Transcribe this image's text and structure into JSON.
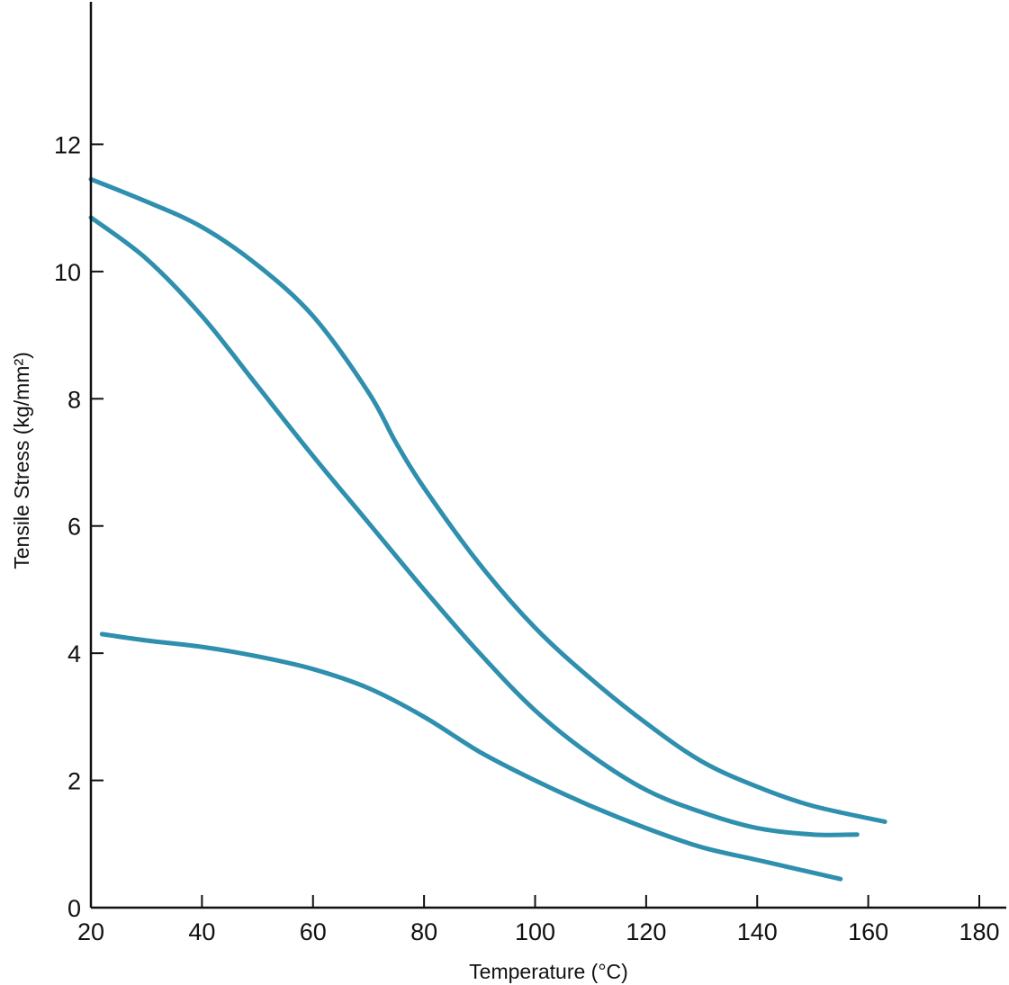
{
  "chart_data": {
    "type": "line",
    "title": "",
    "xlabel": "Temperature (°C)",
    "ylabel": "Tensile Stress (kg/mm²)",
    "xlim": [
      20,
      180
    ],
    "ylim": [
      0,
      14
    ],
    "x_ticks": [
      20,
      40,
      60,
      80,
      100,
      120,
      140,
      160,
      180
    ],
    "y_ticks": [
      0,
      2,
      4,
      6,
      8,
      10,
      12
    ],
    "grid": false,
    "legend": "none",
    "series_color": "#2f8fae",
    "series": [
      {
        "x": [
          20,
          30,
          40,
          50,
          60,
          70,
          75,
          80,
          90,
          100,
          110,
          120,
          130,
          140,
          150,
          163
        ],
        "y": [
          11.45,
          11.1,
          10.7,
          10.1,
          9.3,
          8.1,
          7.3,
          6.6,
          5.4,
          4.4,
          3.6,
          2.9,
          2.3,
          1.9,
          1.6,
          1.35
        ]
      },
      {
        "x": [
          20,
          30,
          40,
          50,
          60,
          70,
          80,
          90,
          100,
          110,
          120,
          130,
          140,
          150,
          158
        ],
        "y": [
          10.85,
          10.2,
          9.3,
          8.2,
          7.1,
          6.05,
          5.0,
          4.0,
          3.1,
          2.4,
          1.85,
          1.5,
          1.25,
          1.15,
          1.15
        ]
      },
      {
        "x": [
          22,
          30,
          40,
          50,
          60,
          70,
          80,
          90,
          100,
          110,
          120,
          130,
          140,
          150,
          155
        ],
        "y": [
          4.3,
          4.2,
          4.1,
          3.95,
          3.75,
          3.45,
          3.0,
          2.45,
          2.0,
          1.6,
          1.25,
          0.95,
          0.75,
          0.55,
          0.45
        ]
      }
    ]
  }
}
